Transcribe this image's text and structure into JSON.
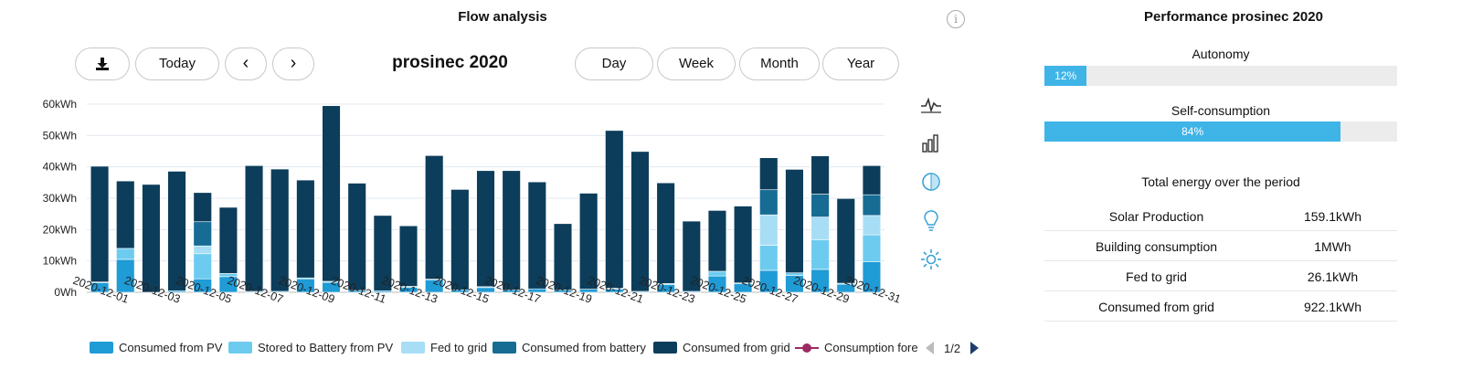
{
  "flow": {
    "title": "Flow analysis",
    "info_icon": "i",
    "today_label": "Today",
    "prev_label": "‹",
    "next_label": "›",
    "period_title": "prosinec 2020",
    "ranges": [
      "Day",
      "Week",
      "Month",
      "Year"
    ]
  },
  "icons": [
    "download-icon",
    "line-chart-icon",
    "bar-chart-icon",
    "contrast-icon",
    "lightbulb-icon",
    "sun-icon"
  ],
  "legend": {
    "items": [
      {
        "label": "Consumed from PV",
        "color": "#1f9bd6"
      },
      {
        "label": "Stored to Battery from PV",
        "color": "#6dcbef"
      },
      {
        "label": "Fed to grid",
        "color": "#a8def5"
      },
      {
        "label": "Consumed from battery",
        "color": "#176c94"
      },
      {
        "label": "Consumed from grid",
        "color": "#0c3d5b"
      }
    ],
    "clipped_item": {
      "label": "Consumption fore",
      "color": "#9c2a62"
    },
    "pager_text": "1/2"
  },
  "chart_data": {
    "type": "bar",
    "stacked": true,
    "categories": [
      "2020-12-01",
      "2020-12-02",
      "2020-12-03",
      "2020-12-04",
      "2020-12-05",
      "2020-12-06",
      "2020-12-07",
      "2020-12-08",
      "2020-12-09",
      "2020-12-10",
      "2020-12-11",
      "2020-12-12",
      "2020-12-13",
      "2020-12-14",
      "2020-12-15",
      "2020-12-16",
      "2020-12-17",
      "2020-12-18",
      "2020-12-19",
      "2020-12-20",
      "2020-12-21",
      "2020-12-22",
      "2020-12-23",
      "2020-12-24",
      "2020-12-25",
      "2020-12-26",
      "2020-12-27",
      "2020-12-28",
      "2020-12-29",
      "2020-12-30",
      "2020-12-31"
    ],
    "tick_labels": [
      "2020-12-01",
      "2020-12-03",
      "2020-12-05",
      "2020-12-07",
      "2020-12-09",
      "2020-12-11",
      "2020-12-13",
      "2020-12-15",
      "2020-12-17",
      "2020-12-19",
      "2020-12-21",
      "2020-12-23",
      "2020-12-25",
      "2020-12-27",
      "2020-12-29",
      "2020-12-31"
    ],
    "y_ticks": [
      "0Wh",
      "10kWh",
      "20kWh",
      "30kWh",
      "40kWh",
      "50kWh",
      "60kWh"
    ],
    "ylim": [
      0,
      60
    ],
    "unit": "kWh",
    "series": [
      {
        "name": "Consumed from PV",
        "color": "#1f9bd6",
        "values": [
          3,
          10.5,
          0,
          0.5,
          4.3,
          5,
          0.3,
          0.3,
          4.3,
          3.2,
          0.6,
          0.5,
          1.6,
          4,
          0.8,
          1.5,
          0.7,
          1.1,
          0.7,
          1,
          1,
          0.3,
          2.5,
          0.3,
          5.2,
          2.7,
          7,
          5.4,
          7.3,
          2.6,
          9.7
        ]
      },
      {
        "name": "Stored to Battery from PV",
        "color": "#6dcbef",
        "values": [
          0.3,
          3.5,
          0,
          0,
          8,
          1,
          0,
          0,
          0.3,
          0.3,
          0,
          0,
          0.3,
          0.2,
          0,
          0.3,
          0,
          0,
          0,
          0,
          0.3,
          0,
          0.3,
          0,
          1.5,
          0.3,
          8,
          0.8,
          9.5,
          0.3,
          8.6
        ]
      },
      {
        "name": "Fed to grid",
        "color": "#a8def5",
        "values": [
          0,
          0,
          0,
          0,
          2.5,
          0,
          0,
          0,
          0,
          0,
          0,
          0,
          0,
          0,
          0,
          0,
          0,
          0,
          0,
          0,
          0,
          0,
          0,
          0,
          0,
          0,
          9.7,
          0,
          7.2,
          0,
          6.2
        ]
      },
      {
        "name": "Consumed from battery",
        "color": "#176c94",
        "values": [
          0,
          0,
          0,
          0,
          7.7,
          0,
          0,
          0,
          0,
          0,
          0,
          0,
          0,
          0,
          0,
          0,
          0,
          0,
          0,
          0,
          0,
          0,
          0,
          0,
          0,
          0,
          8,
          0,
          7.3,
          0,
          6.6
        ]
      },
      {
        "name": "Consumed from grid",
        "color": "#0c3d5b",
        "values": [
          36.9,
          21.5,
          34.4,
          38.1,
          9.3,
          21.1,
          40.1,
          39,
          31.2,
          56,
          34.2,
          24,
          19.3,
          39.4,
          32,
          37,
          38.1,
          34.1,
          21.2,
          30.6,
          50.3,
          44.6,
          32.1,
          22.4,
          19.4,
          24.5,
          10.2,
          33,
          12.2,
          27,
          9.3
        ]
      }
    ]
  },
  "performance": {
    "title": "Performance prosinec 2020",
    "autonomy": {
      "label": "Autonomy",
      "percent": 12,
      "text": "12%"
    },
    "self_consumption": {
      "label": "Self-consumption",
      "percent": 84,
      "text": "84%"
    },
    "total_title": "Total energy over the period",
    "rows": [
      {
        "label": "Solar Production",
        "value": "159.1kWh"
      },
      {
        "label": "Building consumption",
        "value": "1MWh"
      },
      {
        "label": "Fed to grid",
        "value": "26.1kWh"
      },
      {
        "label": "Consumed from grid",
        "value": "922.1kWh"
      }
    ]
  }
}
